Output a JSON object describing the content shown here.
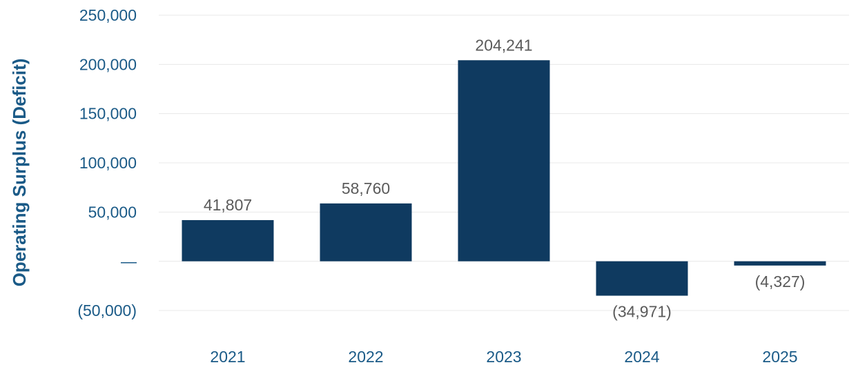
{
  "chart_data": {
    "type": "bar",
    "title": "",
    "xlabel": "",
    "ylabel": "Operating Surplus (Deficit)",
    "categories": [
      "2021",
      "2022",
      "2023",
      "2024",
      "2025"
    ],
    "values": [
      41807,
      58760,
      204241,
      -34971,
      -4327
    ],
    "data_labels": [
      "41,807",
      "58,760",
      "204,241",
      "(34,971)",
      "(4,327)"
    ],
    "ylim": [
      -50000,
      250000
    ],
    "yticks": [
      -50000,
      0,
      50000,
      100000,
      150000,
      200000,
      250000
    ],
    "ytick_labels": [
      "(50,000)",
      "—",
      "50,000",
      "100,000",
      "150,000",
      "200,000",
      "250,000"
    ],
    "grid": true,
    "legend": "none"
  },
  "colors": {
    "bar": "#0f3a60",
    "axis_text": "#1a5a87",
    "data_label": "#5a5a5a",
    "grid": "#e8e8e8"
  }
}
